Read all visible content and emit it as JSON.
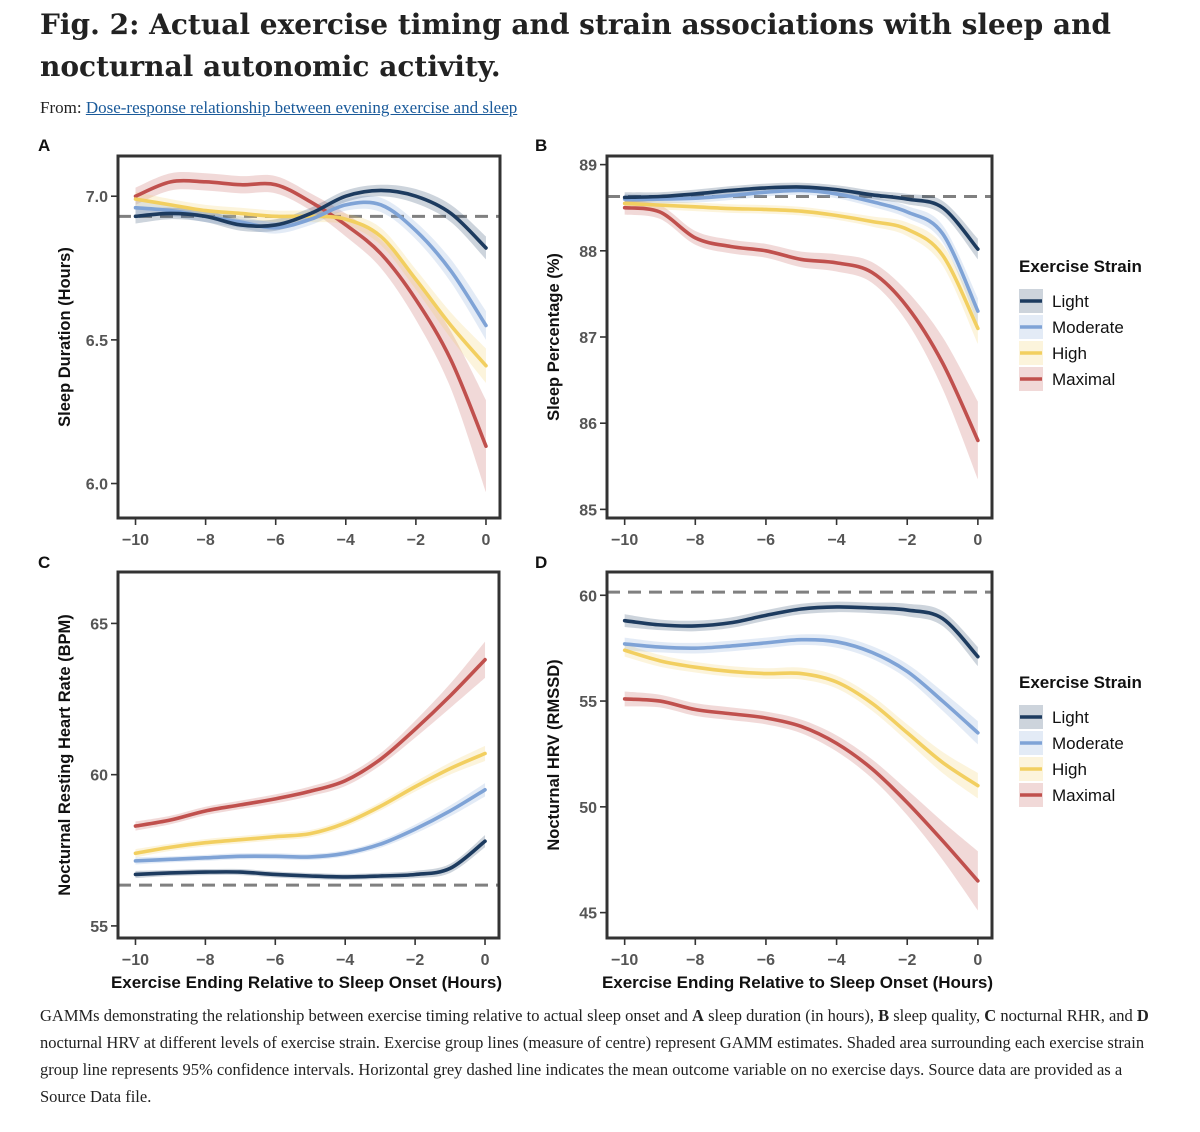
{
  "header": {
    "title": "Fig. 2: Actual exercise timing and strain associations with sleep and nocturnal autonomic activity.",
    "from_label": "From: ",
    "from_link": "Dose-response relationship between evening exercise and sleep"
  },
  "caption": {
    "t1": "GAMMs demonstrating the relationship between exercise timing relative to actual sleep onset and ",
    "bA": "A",
    "t2": " sleep duration (in hours), ",
    "bB": "B",
    "t3": " sleep quality, ",
    "bC": "C",
    "t4": " nocturnal RHR, and ",
    "bD": "D",
    "t5": " nocturnal HRV at different levels of exercise strain. Exercise group lines (measure of centre) represent GAMM estimates. Shaded area surrounding each exercise strain group line represents 95% confidence intervals. Horizontal grey dashed line indicates the mean outcome variable on no exercise days. Source data are provided as a Source Data file."
  },
  "legend": {
    "title": "Exercise Strain",
    "entries": [
      "Light",
      "Moderate",
      "High",
      "Maximal"
    ]
  },
  "colors": {
    "Light": "#1d3b5f",
    "Moderate": "#7fa3d6",
    "High": "#f2cf60",
    "Maximal": "#c0504d",
    "reference": "#808080",
    "axis": "#333333"
  },
  "chart_data": [
    {
      "panel": "A",
      "type": "line",
      "xlabel": "",
      "ylabel": "Sleep Duration (Hours)",
      "xlim": [
        -10.5,
        0.4
      ],
      "ylim": [
        5.88,
        7.14
      ],
      "xticks": [
        -10,
        -8,
        -6,
        -4,
        -2,
        0
      ],
      "yticks": [
        6.0,
        6.5,
        7.0
      ],
      "reference_line": 6.93,
      "x": [
        -10,
        -9,
        -8,
        -7,
        -6,
        -5,
        -4,
        -3,
        -2,
        -1,
        0
      ],
      "series": [
        {
          "name": "Light",
          "values": [
            6.93,
            6.94,
            6.93,
            6.9,
            6.9,
            6.94,
            7.0,
            7.02,
            7.0,
            6.94,
            6.82
          ],
          "ci": [
            0.025,
            0.02,
            0.02,
            0.02,
            0.02,
            0.02,
            0.02,
            0.02,
            0.025,
            0.03,
            0.04
          ]
        },
        {
          "name": "Moderate",
          "values": [
            6.96,
            6.95,
            6.93,
            6.91,
            6.89,
            6.92,
            6.97,
            6.97,
            6.88,
            6.74,
            6.55
          ],
          "ci": [
            0.025,
            0.02,
            0.02,
            0.02,
            0.02,
            0.02,
            0.02,
            0.025,
            0.03,
            0.04,
            0.05
          ]
        },
        {
          "name": "High",
          "values": [
            6.99,
            6.97,
            6.95,
            6.94,
            6.93,
            6.93,
            6.92,
            6.86,
            6.71,
            6.55,
            6.41
          ],
          "ci": [
            0.025,
            0.02,
            0.02,
            0.02,
            0.02,
            0.02,
            0.02,
            0.03,
            0.035,
            0.045,
            0.06
          ]
        },
        {
          "name": "Maximal",
          "values": [
            7.0,
            7.05,
            7.05,
            7.04,
            7.04,
            6.98,
            6.9,
            6.8,
            6.64,
            6.43,
            6.13
          ],
          "ci": [
            0.03,
            0.03,
            0.03,
            0.03,
            0.03,
            0.03,
            0.04,
            0.05,
            0.07,
            0.1,
            0.16
          ]
        }
      ]
    },
    {
      "panel": "B",
      "type": "line",
      "xlabel": "",
      "ylabel": "Sleep Percentage (%)",
      "xlim": [
        -10.5,
        0.4
      ],
      "ylim": [
        84.9,
        89.1
      ],
      "xticks": [
        -10,
        -8,
        -6,
        -4,
        -2,
        0
      ],
      "yticks": [
        85,
        86,
        87,
        88,
        89
      ],
      "reference_line": 88.63,
      "x": [
        -10,
        -9,
        -8,
        -7,
        -6,
        -5,
        -4,
        -3,
        -2,
        -1,
        0
      ],
      "series": [
        {
          "name": "Light",
          "values": [
            88.62,
            88.63,
            88.66,
            88.7,
            88.73,
            88.74,
            88.71,
            88.65,
            88.6,
            88.5,
            88.02
          ],
          "ci": [
            0.06,
            0.05,
            0.05,
            0.05,
            0.05,
            0.05,
            0.05,
            0.05,
            0.06,
            0.08,
            0.12
          ]
        },
        {
          "name": "Moderate",
          "values": [
            88.6,
            88.6,
            88.61,
            88.64,
            88.68,
            88.7,
            88.66,
            88.57,
            88.45,
            88.2,
            87.3
          ],
          "ci": [
            0.06,
            0.05,
            0.05,
            0.05,
            0.05,
            0.05,
            0.05,
            0.06,
            0.07,
            0.1,
            0.15
          ]
        },
        {
          "name": "High",
          "values": [
            88.55,
            88.53,
            88.51,
            88.49,
            88.48,
            88.46,
            88.41,
            88.34,
            88.25,
            87.95,
            87.1
          ],
          "ci": [
            0.06,
            0.05,
            0.05,
            0.05,
            0.05,
            0.05,
            0.05,
            0.06,
            0.08,
            0.12,
            0.18
          ]
        },
        {
          "name": "Maximal",
          "values": [
            88.5,
            88.45,
            88.15,
            88.05,
            88.0,
            87.9,
            87.86,
            87.75,
            87.35,
            86.7,
            85.8
          ],
          "ci": [
            0.08,
            0.08,
            0.08,
            0.08,
            0.08,
            0.09,
            0.1,
            0.12,
            0.18,
            0.3,
            0.45
          ]
        }
      ]
    },
    {
      "panel": "C",
      "type": "line",
      "xlabel": "Exercise Ending Relative to Sleep Onset (Hours)",
      "ylabel": "Nocturnal Resting Heart Rate (BPM)",
      "xlim": [
        -10.5,
        0.4
      ],
      "ylim": [
        54.6,
        66.7
      ],
      "xticks": [
        -10,
        -8,
        -6,
        -4,
        -2,
        0
      ],
      "yticks": [
        55,
        60,
        65
      ],
      "reference_line": 56.35,
      "x": [
        -10,
        -9,
        -8,
        -7,
        -6,
        -5,
        -4,
        -3,
        -2,
        -1,
        0
      ],
      "series": [
        {
          "name": "Light",
          "values": [
            56.7,
            56.75,
            56.78,
            56.78,
            56.7,
            56.65,
            56.62,
            56.65,
            56.7,
            56.9,
            57.8
          ],
          "ci": [
            0.12,
            0.1,
            0.1,
            0.1,
            0.1,
            0.1,
            0.1,
            0.1,
            0.12,
            0.15,
            0.2
          ]
        },
        {
          "name": "Moderate",
          "values": [
            57.15,
            57.2,
            57.25,
            57.3,
            57.3,
            57.28,
            57.4,
            57.7,
            58.2,
            58.8,
            59.5
          ],
          "ci": [
            0.12,
            0.1,
            0.1,
            0.1,
            0.1,
            0.1,
            0.1,
            0.12,
            0.15,
            0.18,
            0.22
          ]
        },
        {
          "name": "High",
          "values": [
            57.4,
            57.6,
            57.75,
            57.85,
            57.95,
            58.05,
            58.4,
            58.95,
            59.6,
            60.2,
            60.7
          ],
          "ci": [
            0.14,
            0.12,
            0.12,
            0.12,
            0.12,
            0.12,
            0.13,
            0.14,
            0.16,
            0.2,
            0.25
          ]
        },
        {
          "name": "Maximal",
          "values": [
            58.3,
            58.5,
            58.8,
            59.0,
            59.2,
            59.45,
            59.8,
            60.5,
            61.5,
            62.6,
            63.8
          ],
          "ci": [
            0.15,
            0.14,
            0.14,
            0.14,
            0.15,
            0.16,
            0.18,
            0.2,
            0.28,
            0.4,
            0.6
          ]
        }
      ]
    },
    {
      "panel": "D",
      "type": "line",
      "xlabel": "Exercise Ending Relative to Sleep Onset (Hours)",
      "ylabel": "Nocturnal HRV (RMSSD)",
      "xlim": [
        -10.5,
        0.4
      ],
      "ylim": [
        43.8,
        61.1
      ],
      "xticks": [
        -10,
        -8,
        -6,
        -4,
        -2,
        0
      ],
      "yticks": [
        45,
        50,
        55,
        60
      ],
      "reference_line": 60.15,
      "x": [
        -10,
        -9,
        -8,
        -7,
        -6,
        -5,
        -4,
        -3,
        -2,
        -1,
        0
      ],
      "series": [
        {
          "name": "Light",
          "values": [
            58.8,
            58.6,
            58.55,
            58.7,
            59.05,
            59.35,
            59.45,
            59.4,
            59.3,
            58.9,
            57.1
          ],
          "ci": [
            0.3,
            0.25,
            0.25,
            0.25,
            0.25,
            0.25,
            0.25,
            0.25,
            0.3,
            0.35,
            0.45
          ]
        },
        {
          "name": "Moderate",
          "values": [
            57.7,
            57.55,
            57.5,
            57.6,
            57.75,
            57.9,
            57.8,
            57.3,
            56.4,
            55.0,
            53.5
          ],
          "ci": [
            0.3,
            0.25,
            0.25,
            0.25,
            0.25,
            0.25,
            0.28,
            0.3,
            0.35,
            0.45,
            0.55
          ]
        },
        {
          "name": "High",
          "values": [
            57.4,
            56.9,
            56.6,
            56.4,
            56.3,
            56.3,
            55.9,
            54.9,
            53.5,
            52.1,
            51.0
          ],
          "ci": [
            0.3,
            0.28,
            0.25,
            0.25,
            0.25,
            0.28,
            0.3,
            0.35,
            0.4,
            0.5,
            0.6
          ]
        },
        {
          "name": "Maximal",
          "values": [
            55.1,
            55.0,
            54.6,
            54.4,
            54.2,
            53.8,
            53.0,
            51.8,
            50.2,
            48.4,
            46.5
          ],
          "ci": [
            0.35,
            0.3,
            0.3,
            0.3,
            0.3,
            0.32,
            0.38,
            0.45,
            0.6,
            0.9,
            1.4
          ]
        }
      ]
    }
  ]
}
